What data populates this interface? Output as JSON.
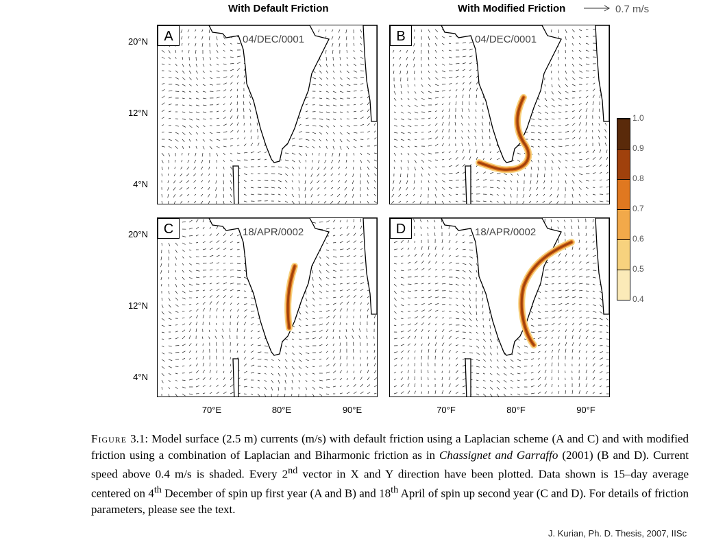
{
  "header": {
    "left_title": "With Default Friction",
    "right_title": "With Modified Friction",
    "reference_vector": "0.7 m/s"
  },
  "panels": [
    {
      "label": "A",
      "date": "04/DEC/0001",
      "jet": "none"
    },
    {
      "label": "B",
      "date": "04/DEC/0001",
      "jet": "dec"
    },
    {
      "label": "C",
      "date": "18/APR/0002",
      "jet": "weak"
    },
    {
      "label": "D",
      "date": "18/APR/0002",
      "jet": "apr"
    }
  ],
  "axes": {
    "y_ticks": [
      "20°N",
      "12°N",
      "4°N"
    ],
    "x_ticks_left": [
      "70°E",
      "80°E",
      "90°E"
    ],
    "x_ticks_right": [
      "70°F",
      "80°F",
      "90°F"
    ]
  },
  "colorbar": {
    "labels": [
      "1.0",
      "0.9",
      "0.8",
      "0.7",
      "0.6",
      "0.5",
      "0.4"
    ],
    "colors": [
      "#5a2a0a",
      "#a0410c",
      "#e07820",
      "#f2a94a",
      "#f7d27e",
      "#fbeab8"
    ]
  },
  "caption": {
    "figure_label": "Figure",
    "figure_number": "3.1:",
    "line1": "Model surface (2.5 m) currents (m/s) with default friction using a Laplacian scheme",
    "line2": "(A and C) and with modified friction using a combination of Laplacian and Biharmonic friction as in",
    "line3_italic": "Chassignet and Garraffo",
    "line3_rest": "(2001) (B and D). Current speed above 0.4 m/s is shaded. Every 2",
    "sup_nd": "nd",
    "line3_end": "vector in",
    "line4": "X and Y direction have been plotted. Data shown is 15–day average centered on 4",
    "sup_th": "th",
    "line4_end": "December of spin up",
    "line5_a": "first year (A and B) and 18",
    "line5_b": "April of spin up second year (C and D). For details of friction parameters,",
    "line6": "please see the text."
  },
  "credit": "J. Kurian, Ph. D. Thesis, 2007, IISc"
}
